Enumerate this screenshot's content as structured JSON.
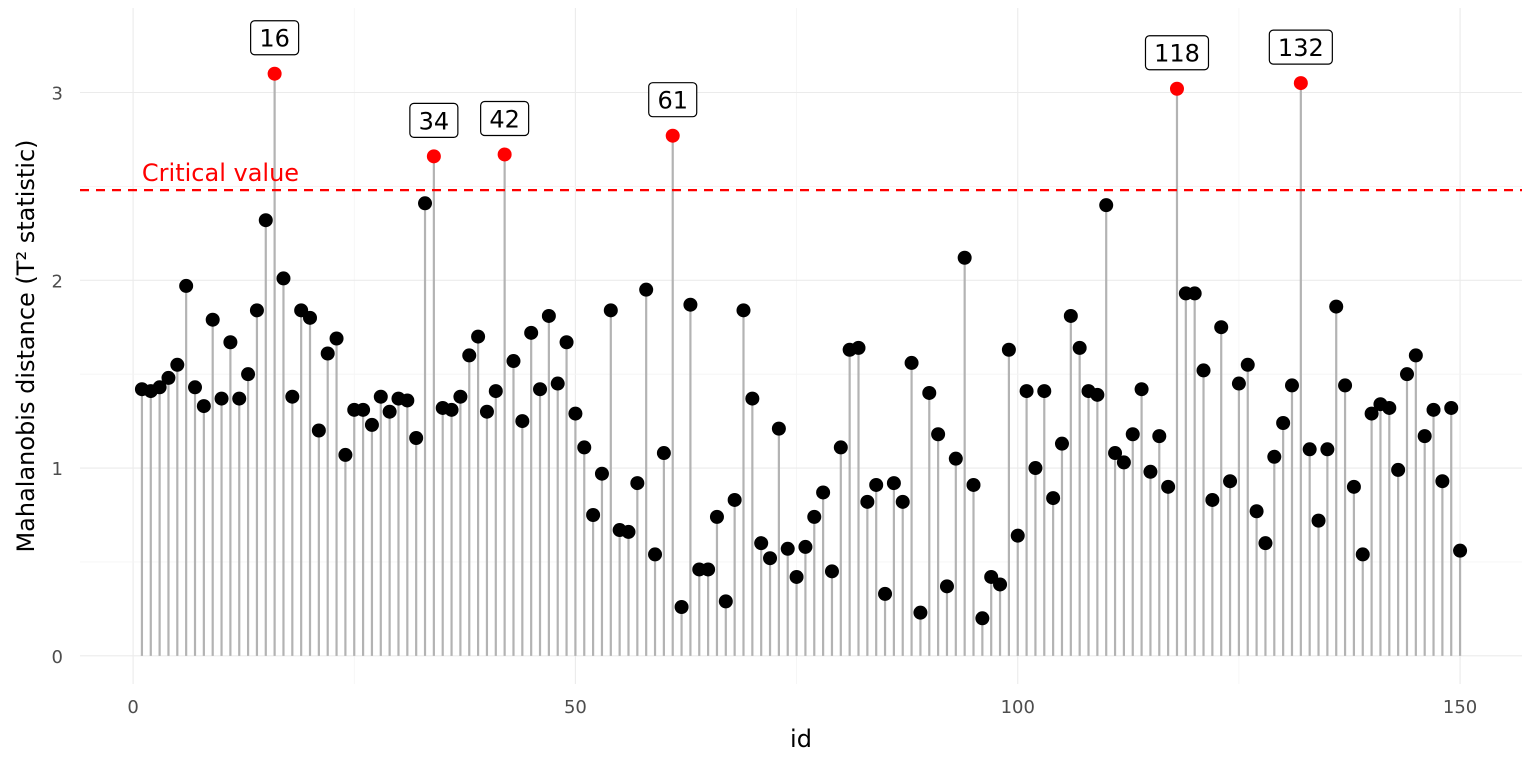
{
  "chart_data": {
    "type": "scatter",
    "subtype": "lollipop",
    "xlabel": "id",
    "ylabel": "Mahalanobis distance (T² statistic)",
    "xlim": [
      -6,
      157
    ],
    "ylim": [
      -0.15,
      3.45
    ],
    "x_ticks": [
      0,
      50,
      100,
      150
    ],
    "y_ticks": [
      0,
      1,
      2,
      3
    ],
    "grid": true,
    "critical_value": {
      "label": "Critical value",
      "y": 2.48,
      "color": "#ff0000"
    },
    "colors": {
      "normal": "#000000",
      "outlier": "#ff0000",
      "stem": "#b3b3b3"
    },
    "x": [
      1,
      2,
      3,
      4,
      5,
      6,
      7,
      8,
      9,
      10,
      11,
      12,
      13,
      14,
      15,
      16,
      17,
      18,
      19,
      20,
      21,
      22,
      23,
      24,
      25,
      26,
      27,
      28,
      29,
      30,
      31,
      32,
      33,
      34,
      35,
      36,
      37,
      38,
      39,
      40,
      41,
      42,
      43,
      44,
      45,
      46,
      47,
      48,
      49,
      50,
      51,
      52,
      53,
      54,
      55,
      56,
      57,
      58,
      59,
      60,
      61,
      62,
      63,
      64,
      65,
      66,
      67,
      68,
      69,
      70,
      71,
      72,
      73,
      74,
      75,
      76,
      77,
      78,
      79,
      80,
      81,
      82,
      83,
      84,
      85,
      86,
      87,
      88,
      89,
      90,
      91,
      92,
      93,
      94,
      95,
      96,
      97,
      98,
      99,
      100,
      101,
      102,
      103,
      104,
      105,
      106,
      107,
      108,
      109,
      110,
      111,
      112,
      113,
      114,
      115,
      116,
      117,
      118,
      119,
      120,
      121,
      122,
      123,
      124,
      125,
      126,
      127,
      128,
      129,
      130,
      131,
      132,
      133,
      134,
      135,
      136,
      137,
      138,
      139,
      140,
      141,
      142,
      143,
      144,
      145,
      146,
      147,
      148,
      149,
      150
    ],
    "y": [
      1.42,
      1.41,
      1.43,
      1.48,
      1.55,
      1.97,
      1.43,
      1.33,
      1.79,
      1.37,
      1.67,
      1.37,
      1.5,
      1.84,
      2.32,
      3.1,
      2.01,
      1.38,
      1.84,
      1.8,
      1.2,
      1.61,
      1.69,
      1.07,
      1.31,
      1.31,
      1.23,
      1.38,
      1.3,
      1.37,
      1.36,
      1.16,
      2.41,
      2.66,
      1.32,
      1.31,
      1.38,
      1.6,
      1.7,
      1.3,
      1.41,
      2.67,
      1.57,
      1.25,
      1.72,
      1.42,
      1.81,
      1.45,
      1.67,
      1.29,
      1.11,
      0.75,
      0.97,
      1.84,
      0.67,
      0.66,
      0.92,
      1.95,
      0.54,
      1.08,
      2.77,
      0.26,
      1.87,
      0.46,
      0.46,
      0.74,
      0.29,
      0.83,
      1.84,
      1.37,
      0.6,
      0.52,
      1.21,
      0.57,
      0.42,
      0.58,
      0.74,
      0.87,
      0.45,
      1.11,
      1.63,
      1.64,
      0.82,
      0.91,
      0.33,
      0.92,
      0.82,
      1.56,
      0.23,
      1.4,
      1.18,
      0.37,
      1.05,
      2.12,
      0.91,
      0.2,
      0.42,
      0.38,
      1.63,
      0.64,
      1.41,
      1.0,
      1.41,
      0.84,
      1.13,
      1.81,
      1.64,
      1.41,
      1.39,
      2.4,
      1.08,
      1.03,
      1.18,
      1.42,
      0.98,
      1.17,
      0.9,
      3.02,
      1.93,
      1.93,
      1.52,
      0.83,
      1.75,
      0.93,
      1.45,
      1.55,
      0.77,
      0.6,
      1.06,
      1.24,
      1.44,
      3.05,
      1.1,
      0.72,
      1.1,
      1.86,
      1.44,
      0.9,
      0.54,
      1.29,
      1.34,
      1.32,
      0.99,
      1.5,
      1.6,
      1.17,
      1.31,
      0.93,
      1.32,
      0.56
    ],
    "outliers": [
      {
        "id": 16,
        "label": "16"
      },
      {
        "id": 34,
        "label": "34"
      },
      {
        "id": 42,
        "label": "42"
      },
      {
        "id": 61,
        "label": "61"
      },
      {
        "id": 118,
        "label": "118"
      },
      {
        "id": 132,
        "label": "132"
      }
    ]
  }
}
